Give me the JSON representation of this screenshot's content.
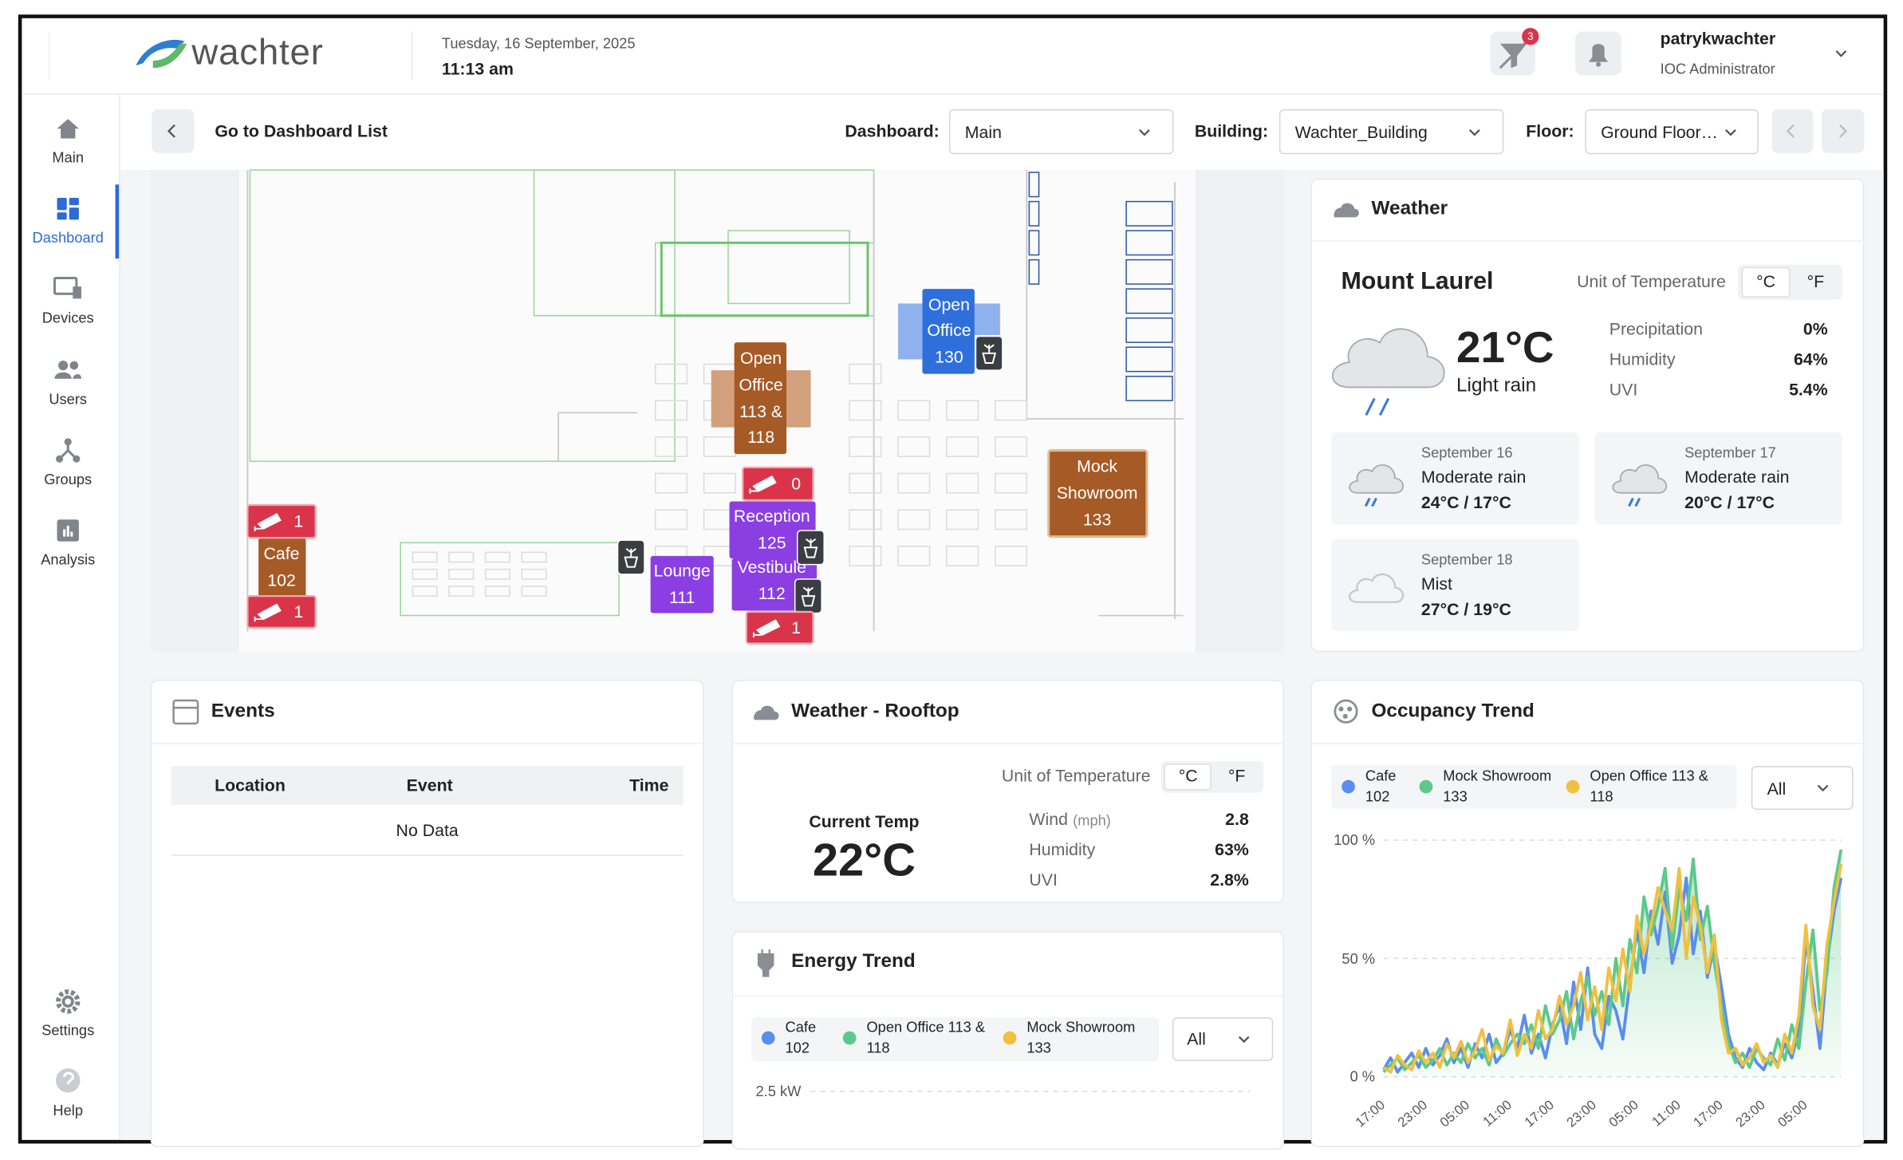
{
  "header": {
    "brand": "wachter",
    "date": "Tuesday, 16 September, 2025",
    "time": "11:13 am",
    "alert_badge": 3,
    "user_name": "patrykwachter",
    "user_role": "IOC Administrator"
  },
  "sidebar": {
    "items": [
      "Main",
      "Dashboard",
      "Devices",
      "Users",
      "Groups",
      "Analysis"
    ],
    "footer_items": [
      "Settings",
      "Help"
    ]
  },
  "toolbar": {
    "back": "Go to Dashboard List",
    "dashboard_label": "Dashboard:",
    "dashboard": "Main",
    "building_label": "Building:",
    "building": "Wachter_Building",
    "floor_label": "Floor:",
    "floor": "Ground Floor…"
  },
  "floor_plan": {
    "rooms": [
      {
        "label": [
          "Open",
          "Office",
          "130"
        ]
      },
      {
        "label": [
          "Open",
          "Office",
          "113 &",
          "118"
        ]
      },
      {
        "label": [
          "Mock",
          "Showroom",
          "133"
        ]
      },
      {
        "label": [
          "Reception",
          "125"
        ]
      },
      {
        "label": [
          "Vestibule",
          "112"
        ]
      },
      {
        "label": [
          "Lounge",
          "111"
        ]
      },
      {
        "label": [
          "Cafe",
          "102"
        ]
      }
    ],
    "cameras": [
      1,
      1,
      0,
      1
    ]
  },
  "weather": {
    "title": "Weather",
    "location": "Mount Laurel",
    "unit_label": "Unit of Temperature",
    "units": [
      "°C",
      "°F"
    ],
    "temperature": "21°C",
    "condition": "Light rain",
    "stats": [
      {
        "label": "Precipitation",
        "value": "0%"
      },
      {
        "label": "Humidity",
        "value": "64%"
      },
      {
        "label": "UVI",
        "value": "5.4%"
      }
    ],
    "forecast": [
      {
        "date": "September 16",
        "condition": "Moderate rain",
        "range": "24°C / 17°C"
      },
      {
        "date": "September 17",
        "condition": "Moderate rain",
        "range": "20°C / 17°C"
      },
      {
        "date": "September 18",
        "condition": "Mist",
        "range": "27°C / 19°C"
      }
    ]
  },
  "events": {
    "title": "Events",
    "columns": [
      "Location",
      "Event",
      "Time"
    ],
    "empty": "No Data"
  },
  "weather_rooftop": {
    "title": "Weather - Rooftop",
    "unit_label": "Unit of Temperature",
    "units": [
      "°C",
      "°F"
    ],
    "current_label": "Current Temp",
    "temperature": "22°C",
    "stats": [
      {
        "label": "Wind",
        "unit": "(mph)",
        "value": "2.8"
      },
      {
        "label": "Humidity",
        "value": "63%"
      },
      {
        "label": "UVI",
        "value": "2.8%"
      }
    ]
  },
  "chart_data": [
    {
      "type": "line",
      "title": "Energy Trend",
      "filter": "All",
      "series": [
        {
          "name": "Cafe 102",
          "color": "#5b8def"
        },
        {
          "name": "Open Office 113 & 118",
          "color": "#5cc98a"
        },
        {
          "name": "Mock Showroom 133",
          "color": "#f0c040"
        }
      ],
      "ylim": [
        0,
        2.5
      ],
      "yticks": [
        {
          "value": 2.5,
          "label": "2.5 kW"
        }
      ],
      "grid": true
    },
    {
      "type": "line",
      "title": "Occupancy Trend",
      "filter": "All",
      "categories": [
        "17:00",
        null,
        null,
        null,
        null,
        null,
        "23:00",
        null,
        null,
        null,
        null,
        null,
        "05:00",
        null,
        null,
        null,
        null,
        null,
        "11:00",
        null,
        null,
        null,
        null,
        null,
        "17:00",
        null,
        null,
        null,
        null,
        null,
        "23:00",
        null,
        null,
        null,
        null,
        null,
        "05:00",
        null,
        null,
        null,
        null,
        null,
        "11:00",
        null,
        null,
        null,
        null,
        null,
        "17:00",
        null,
        null,
        null,
        null,
        null,
        "23:00",
        null,
        null,
        null,
        null,
        null,
        "05:00",
        null,
        null,
        null,
        null,
        null
      ],
      "series": [
        {
          "name": "Cafe 102",
          "color": "#5b8def",
          "values": [
            3,
            8,
            2,
            6,
            10,
            4,
            12,
            5,
            9,
            16,
            6,
            12,
            4,
            14,
            8,
            18,
            6,
            10,
            20,
            12,
            26,
            10,
            18,
            8,
            22,
            30,
            14,
            40,
            20,
            46,
            18,
            12,
            34,
            28,
            16,
            40,
            62,
            44,
            70,
            56,
            78,
            48,
            60,
            84,
            52,
            70,
            42,
            56,
            38,
            18,
            8,
            4,
            12,
            6,
            3,
            10,
            5,
            14,
            8,
            20,
            58,
            36,
            12,
            48,
            70,
            84
          ]
        },
        {
          "name": "Mock Showroom 133",
          "color": "#5cc98a",
          "values": [
            2,
            5,
            8,
            3,
            6,
            9,
            4,
            7,
            12,
            5,
            10,
            6,
            14,
            8,
            12,
            5,
            16,
            9,
            14,
            18,
            14,
            22,
            12,
            30,
            18,
            24,
            36,
            16,
            32,
            42,
            26,
            36,
            22,
            50,
            30,
            58,
            44,
            76,
            60,
            72,
            88,
            54,
            80,
            66,
            92,
            58,
            72,
            48,
            30,
            14,
            6,
            10,
            4,
            12,
            8,
            5,
            16,
            7,
            22,
            12,
            40,
            62,
            28,
            44,
            80,
            96
          ]
        },
        {
          "name": "Open Office 113 & 118",
          "color": "#f0c040",
          "values": [
            4,
            2,
            9,
            5,
            3,
            11,
            6,
            10,
            4,
            14,
            8,
            15,
            6,
            11,
            20,
            7,
            13,
            10,
            24,
            9,
            18,
            12,
            28,
            16,
            20,
            34,
            22,
            30,
            44,
            24,
            38,
            20,
            46,
            32,
            54,
            36,
            68,
            52,
            64,
            80,
            70,
            62,
            88,
            50,
            76,
            64,
            44,
            60,
            24,
            10,
            12,
            5,
            8,
            14,
            6,
            9,
            4,
            18,
            10,
            26,
            64,
            30,
            20,
            56,
            74,
            90
          ]
        }
      ],
      "ylim": [
        0,
        100
      ],
      "yticks": [
        {
          "value": 0,
          "label": "0 %"
        },
        {
          "value": 50,
          "label": "50 %"
        },
        {
          "value": 100,
          "label": "100 %"
        }
      ],
      "grid": true,
      "area": true
    }
  ]
}
